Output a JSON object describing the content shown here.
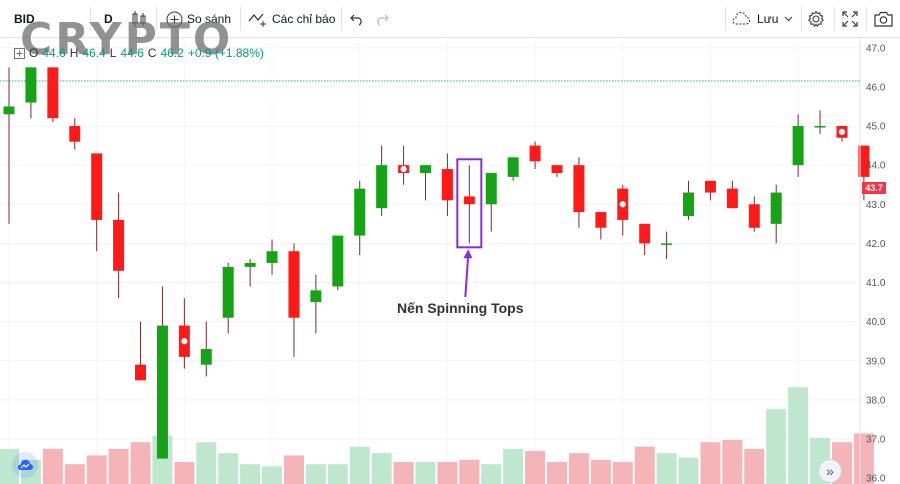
{
  "toolbar": {
    "symbol": "BID",
    "interval": "D",
    "compare_label": "So sánh",
    "indicators_label": "Các chỉ báo",
    "save_label": "Lưu"
  },
  "watermark": "CRYPTO",
  "legend": {
    "open_label": "O",
    "open": "44.6",
    "high_label": "H",
    "high": "46.4",
    "low_label": "L",
    "low": "44.6",
    "close_label": "C",
    "close": "46.2",
    "change": "+0.9 (+1.88%)"
  },
  "annotation": "Nến Spinning Tops",
  "last_price": "43.7",
  "colors": {
    "up": "#16a316",
    "down": "#ff1a1a",
    "volume_up": "#bfe6cf",
    "volume_down": "#f5b4b8",
    "annotation_box": "#8a2be2",
    "ref_line": "#26a69a"
  },
  "chart_data": {
    "type": "candlestick",
    "y_axis_ticks": [
      36.0,
      37.0,
      38.0,
      39.0,
      40.0,
      41.0,
      42.0,
      43.0,
      44.0,
      45.0,
      46.0,
      47.0
    ],
    "ylim": [
      35.85,
      47.25
    ],
    "reference_line": 46.15,
    "candles": [
      {
        "o": 45.3,
        "h": 46.5,
        "l": 42.5,
        "c": 45.5,
        "dot": false
      },
      {
        "o": 45.6,
        "h": 46.5,
        "l": 45.2,
        "c": 46.5,
        "dot": false
      },
      {
        "o": 46.5,
        "h": 46.5,
        "l": 45.1,
        "c": 45.2,
        "dot": false
      },
      {
        "o": 45.0,
        "h": 45.2,
        "l": 44.4,
        "c": 44.6,
        "dot": false
      },
      {
        "o": 44.3,
        "h": 44.3,
        "l": 41.8,
        "c": 42.6,
        "dot": false
      },
      {
        "o": 42.6,
        "h": 43.3,
        "l": 40.6,
        "c": 41.3,
        "dot": false
      },
      {
        "o": 38.9,
        "h": 40.0,
        "l": 38.5,
        "c": 38.5,
        "dot": false
      },
      {
        "o": 36.5,
        "h": 40.9,
        "l": 36.5,
        "c": 39.9,
        "dot": false
      },
      {
        "o": 39.9,
        "h": 40.6,
        "l": 38.8,
        "c": 39.1,
        "dot": true
      },
      {
        "o": 38.9,
        "h": 40.0,
        "l": 38.6,
        "c": 39.3,
        "dot": false
      },
      {
        "o": 40.1,
        "h": 41.5,
        "l": 39.7,
        "c": 41.4,
        "dot": false
      },
      {
        "o": 41.4,
        "h": 41.6,
        "l": 40.9,
        "c": 41.5,
        "dot": false
      },
      {
        "o": 41.5,
        "h": 42.1,
        "l": 41.2,
        "c": 41.8,
        "dot": false
      },
      {
        "o": 41.8,
        "h": 42.0,
        "l": 39.1,
        "c": 40.1,
        "dot": false
      },
      {
        "o": 40.5,
        "h": 41.2,
        "l": 39.7,
        "c": 40.8,
        "dot": false
      },
      {
        "o": 40.9,
        "h": 42.2,
        "l": 40.8,
        "c": 42.2,
        "dot": false
      },
      {
        "o": 42.2,
        "h": 43.6,
        "l": 41.7,
        "c": 43.4,
        "dot": false
      },
      {
        "o": 42.9,
        "h": 44.5,
        "l": 42.7,
        "c": 44.0,
        "dot": false
      },
      {
        "o": 44.0,
        "h": 44.5,
        "l": 43.5,
        "c": 43.8,
        "dot": true
      },
      {
        "o": 43.8,
        "h": 44.0,
        "l": 43.1,
        "c": 44.0,
        "dot": false
      },
      {
        "o": 43.9,
        "h": 44.3,
        "l": 42.7,
        "c": 43.1,
        "dot": false
      },
      {
        "o": 43.2,
        "h": 44.0,
        "l": 42.0,
        "c": 43.0,
        "dot": false
      },
      {
        "o": 43.0,
        "h": 43.8,
        "l": 42.3,
        "c": 43.8,
        "dot": false
      },
      {
        "o": 43.7,
        "h": 44.2,
        "l": 43.6,
        "c": 44.2,
        "dot": false
      },
      {
        "o": 44.5,
        "h": 44.6,
        "l": 43.9,
        "c": 44.1,
        "dot": false
      },
      {
        "o": 44.0,
        "h": 44.0,
        "l": 43.7,
        "c": 43.8,
        "dot": false
      },
      {
        "o": 44.0,
        "h": 44.2,
        "l": 42.4,
        "c": 42.8,
        "dot": false
      },
      {
        "o": 42.8,
        "h": 42.8,
        "l": 42.1,
        "c": 42.4,
        "dot": false
      },
      {
        "o": 43.4,
        "h": 43.5,
        "l": 42.2,
        "c": 42.6,
        "dot": true
      },
      {
        "o": 42.5,
        "h": 42.5,
        "l": 41.7,
        "c": 42.0,
        "dot": false
      },
      {
        "o": 42.0,
        "h": 42.3,
        "l": 41.6,
        "c": 42.0,
        "dot": false
      },
      {
        "o": 42.7,
        "h": 43.6,
        "l": 42.6,
        "c": 43.3,
        "dot": false
      },
      {
        "o": 43.6,
        "h": 43.6,
        "l": 43.1,
        "c": 43.3,
        "dot": false
      },
      {
        "o": 43.4,
        "h": 43.6,
        "l": 42.9,
        "c": 42.9,
        "dot": false
      },
      {
        "o": 43.0,
        "h": 43.2,
        "l": 42.3,
        "c": 42.4,
        "dot": false
      },
      {
        "o": 42.5,
        "h": 43.5,
        "l": 42.0,
        "c": 43.3,
        "dot": false
      },
      {
        "o": 44.0,
        "h": 45.3,
        "l": 43.7,
        "c": 45.0,
        "dot": false
      },
      {
        "o": 45.0,
        "h": 45.4,
        "l": 44.8,
        "c": 45.0,
        "dot": false
      },
      {
        "o": 45.0,
        "h": 45.0,
        "l": 44.6,
        "c": 44.7,
        "dot": true
      },
      {
        "o": 44.5,
        "h": 44.5,
        "l": 43.1,
        "c": 43.7,
        "dot": false
      }
    ],
    "volume": [
      0.16,
      0.11,
      0.16,
      0.09,
      0.13,
      0.16,
      0.19,
      0.22,
      0.1,
      0.19,
      0.14,
      0.09,
      0.08,
      0.13,
      0.09,
      0.09,
      0.17,
      0.14,
      0.1,
      0.1,
      0.1,
      0.11,
      0.09,
      0.16,
      0.15,
      0.1,
      0.14,
      0.11,
      0.1,
      0.17,
      0.14,
      0.12,
      0.19,
      0.2,
      0.16,
      0.34,
      0.44,
      0.21,
      0.19,
      0.23
    ]
  }
}
